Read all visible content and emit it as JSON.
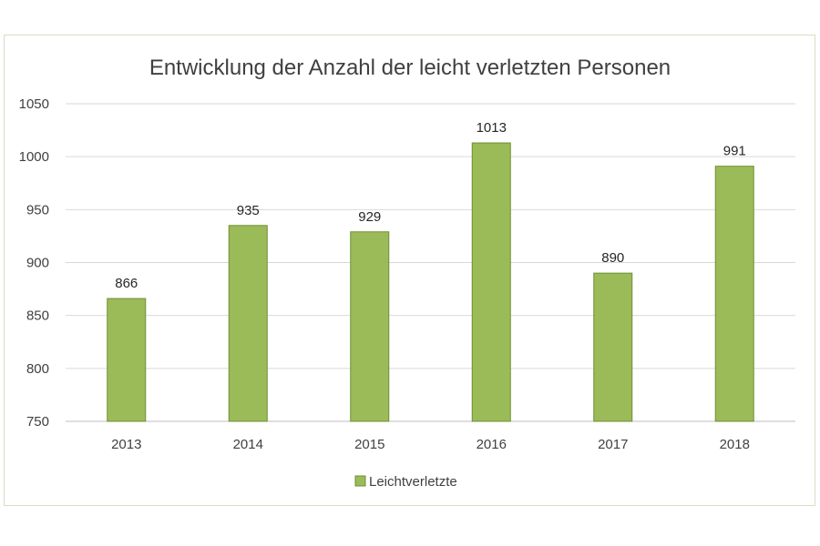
{
  "chart_data": {
    "type": "bar",
    "title": "Entwicklung der Anzahl der leicht verletzten Personen",
    "categories": [
      "2013",
      "2014",
      "2015",
      "2016",
      "2017",
      "2018"
    ],
    "series": [
      {
        "name": "Leichtverletzte",
        "values": [
          866,
          935,
          929,
          1013,
          890,
          991
        ],
        "color": "#9bbb59",
        "border_color": "#6e8f34"
      }
    ],
    "ylim": [
      750,
      1050
    ],
    "yticks": [
      "750",
      "800",
      "850",
      "900",
      "950",
      "1000",
      "1050"
    ],
    "data_labels": [
      "866",
      "935",
      "929",
      "1013",
      "890",
      "991"
    ],
    "grid": true,
    "legend": "bottom"
  }
}
